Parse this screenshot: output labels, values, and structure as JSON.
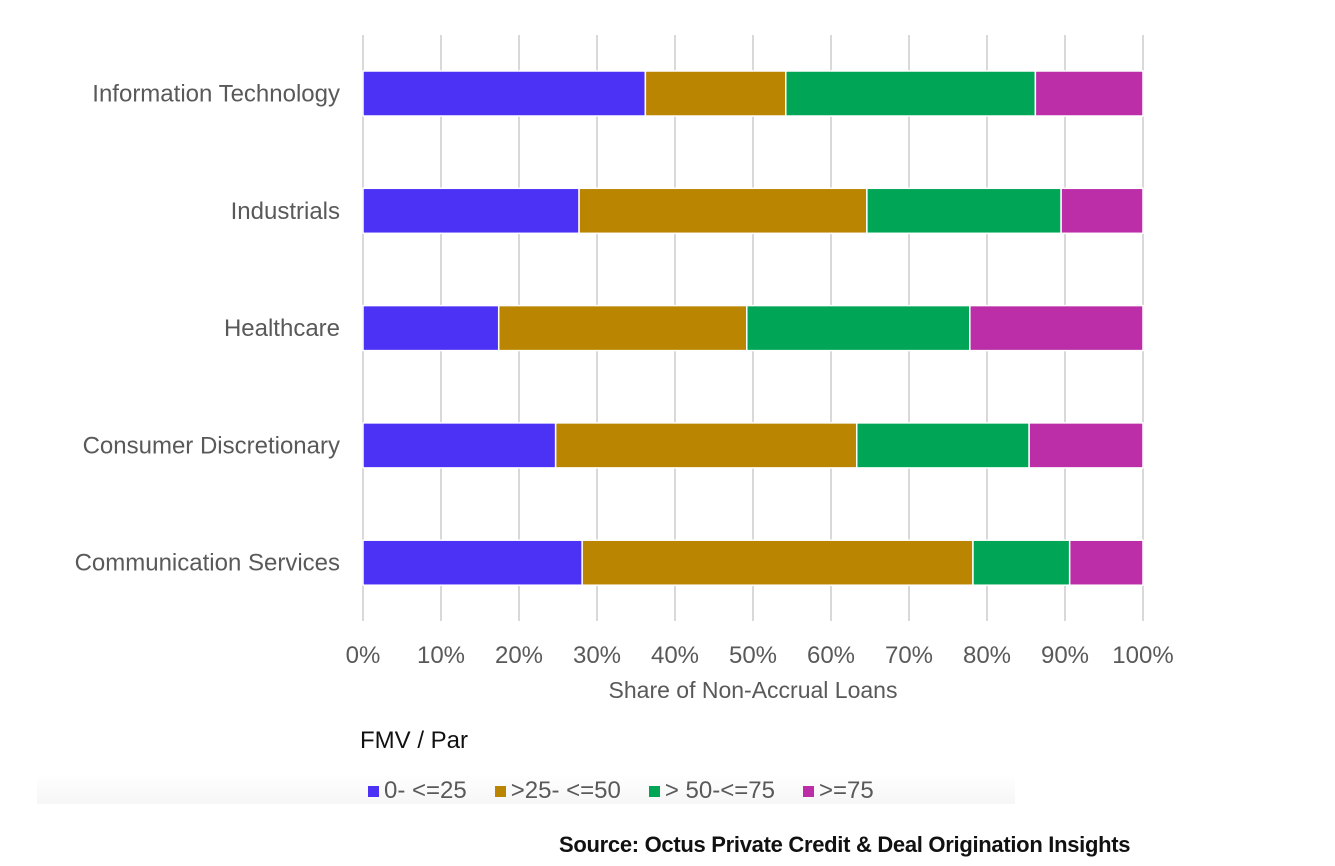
{
  "chart_data": {
    "type": "bar",
    "orientation": "horizontal",
    "stacked": true,
    "categories": [
      "Information Technology",
      "Industrials",
      "Healthcare",
      "Consumer Discretionary",
      "Communication Services"
    ],
    "series": [
      {
        "name": "0- <=25",
        "color": "#4B32F5",
        "values": [
          36.2,
          27.7,
          17.4,
          24.7,
          28.1
        ]
      },
      {
        "name": ">25- <=50",
        "color": "#BA8500",
        "values": [
          18.0,
          36.9,
          31.8,
          38.6,
          50.1
        ]
      },
      {
        "name": "> 50-<=75",
        "color": "#00A555",
        "values": [
          32.0,
          24.9,
          28.6,
          22.1,
          12.4
        ]
      },
      {
        "name": ">=75",
        "color": "#BC2DA8",
        "values": [
          13.8,
          10.5,
          22.2,
          14.6,
          9.4
        ]
      }
    ],
    "title": "",
    "xlabel": "Share of Non-Accrual Loans",
    "ylabel": "",
    "xlim": [
      0,
      100
    ],
    "x_ticks": [
      "0%",
      "10%",
      "20%",
      "30%",
      "40%",
      "50%",
      "60%",
      "70%",
      "80%",
      "90%",
      "100%"
    ],
    "grid": "vertical",
    "legend_title": "FMV / Par",
    "legend_position": "bottom-left"
  },
  "source_text": "Source: Octus Private Credit & Deal Origination Insights"
}
